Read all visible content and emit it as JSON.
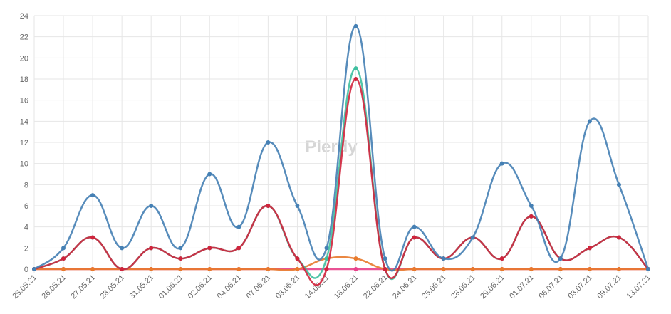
{
  "chart_data": {
    "type": "line",
    "watermark": "Plerdy",
    "categories": [
      "25.05.21",
      "26.05.21",
      "27.05.21",
      "28.05.21",
      "31.05.21",
      "01.06.21",
      "02.06.21",
      "04.06.21",
      "07.06.21",
      "08.06.21",
      "14.06.21",
      "18.06.21",
      "22.06.21",
      "24.06.21",
      "25.06.21",
      "28.06.21",
      "29.06.21",
      "01.07.21",
      "06.07.21",
      "08.07.21",
      "09.07.21",
      "13.07.21"
    ],
    "series": [
      {
        "color": "#e8408a",
        "values": [
          0,
          0,
          0,
          0,
          0,
          0,
          0,
          0,
          0,
          0,
          0,
          0,
          0,
          0,
          0,
          0,
          0,
          0,
          0,
          0,
          0,
          0
        ]
      },
      {
        "color": "#e87a2c",
        "values": [
          0,
          0,
          0,
          0,
          0,
          0,
          0,
          0,
          0,
          0,
          1,
          1,
          0,
          0,
          0,
          0,
          0,
          0,
          0,
          0,
          0,
          0
        ]
      },
      {
        "color": "#3fbfa0",
        "values": [
          0,
          1,
          3,
          0,
          2,
          1,
          2,
          2,
          6,
          1,
          1,
          19,
          0,
          3,
          1,
          3,
          1,
          5,
          1,
          2,
          3,
          0
        ]
      },
      {
        "color": "#d0243c",
        "values": [
          0,
          1,
          3,
          0,
          2,
          1,
          2,
          2,
          6,
          1,
          0,
          18,
          0,
          3,
          1,
          3,
          1,
          5,
          1,
          2,
          3,
          0
        ]
      },
      {
        "color": "#4580b4",
        "values": [
          0,
          2,
          7,
          2,
          6,
          2,
          9,
          4,
          12,
          6,
          2,
          23,
          1,
          4,
          1,
          3,
          10,
          6,
          1,
          14,
          8,
          0
        ]
      }
    ],
    "ylim": [
      0,
      24
    ],
    "yticks": [
      0,
      2,
      4,
      6,
      8,
      10,
      12,
      14,
      16,
      18,
      20,
      22,
      24
    ],
    "grid": true
  }
}
